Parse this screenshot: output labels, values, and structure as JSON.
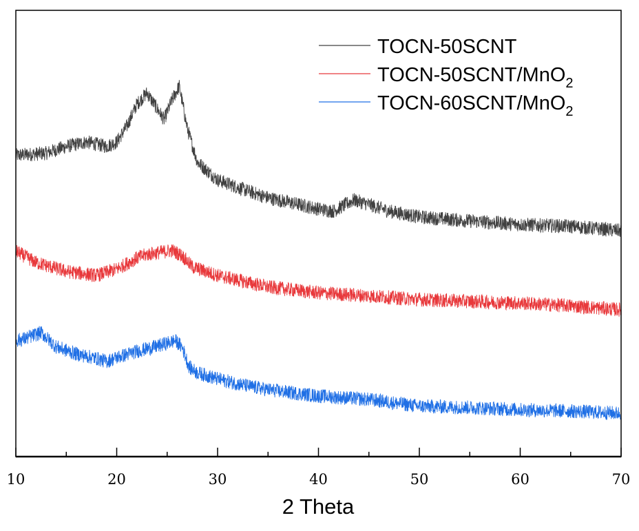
{
  "chart_data": {
    "type": "line",
    "title": "",
    "xlabel": "2 Theta",
    "ylabel": "",
    "xlim": [
      10,
      70
    ],
    "ylim": [
      0,
      100
    ],
    "xticks": [
      "10",
      "20",
      "30",
      "40",
      "50",
      "60",
      "70"
    ],
    "minor_xticks": [
      15,
      25,
      35,
      45,
      55,
      65
    ],
    "grid": false,
    "legend_position": "top-right",
    "series": [
      {
        "name": "TOCN-50SCNT",
        "label_main": "TOCN-50SCNT",
        "label_sub": "",
        "color": "#404040",
        "x": [
          10,
          13,
          15,
          17,
          19,
          20,
          21,
          22,
          23,
          24,
          24.7,
          25.5,
          26.2,
          27,
          28,
          30,
          33,
          35,
          38,
          40,
          41.5,
          43.5,
          45,
          47,
          50,
          55,
          60,
          65,
          70
        ],
        "y": [
          67.5,
          68,
          69.5,
          70.5,
          69.5,
          70.5,
          74,
          79,
          81.5,
          78,
          75.5,
          80,
          83,
          73.5,
          66,
          62,
          59.5,
          58,
          56.5,
          55.5,
          55,
          57.5,
          56.5,
          55,
          53.7,
          52.8,
          52,
          51.6,
          50.6
        ]
      },
      {
        "name": "TOCN-50SCNT/MnO2",
        "label_main": "TOCN-50SCNT/MnO",
        "label_sub": "2",
        "color": "#e8383b",
        "x": [
          10,
          12,
          15,
          18,
          20,
          22,
          23,
          25.5,
          26.5,
          27.5,
          30,
          35,
          40,
          45,
          50,
          55,
          60,
          65,
          70
        ],
        "y": [
          46,
          43.5,
          41.5,
          40.6,
          42,
          44.5,
          45.3,
          46.2,
          45,
          42.5,
          40.6,
          38,
          36.7,
          36,
          35.2,
          34.8,
          34.4,
          33.8,
          32.9
        ]
      },
      {
        "name": "TOCN-60SCNT/MnO2",
        "label_main": "TOCN-60SCNT/MnO",
        "label_sub": "2",
        "color": "#1f6fe5",
        "x": [
          10,
          11,
          12.5,
          14,
          16,
          18,
          19,
          20,
          22,
          24,
          25.8,
          26.5,
          27.2,
          28,
          30,
          33,
          35,
          37,
          40,
          45,
          50,
          55,
          60,
          65,
          70
        ],
        "y": [
          26,
          26.5,
          27.8,
          24.6,
          23,
          22,
          21.3,
          22.2,
          23.6,
          24.7,
          26,
          24.5,
          20,
          18.8,
          17.4,
          15.8,
          15,
          14.4,
          13.6,
          12.8,
          11.3,
          11,
          10.5,
          10.2,
          9.7
        ]
      }
    ]
  }
}
